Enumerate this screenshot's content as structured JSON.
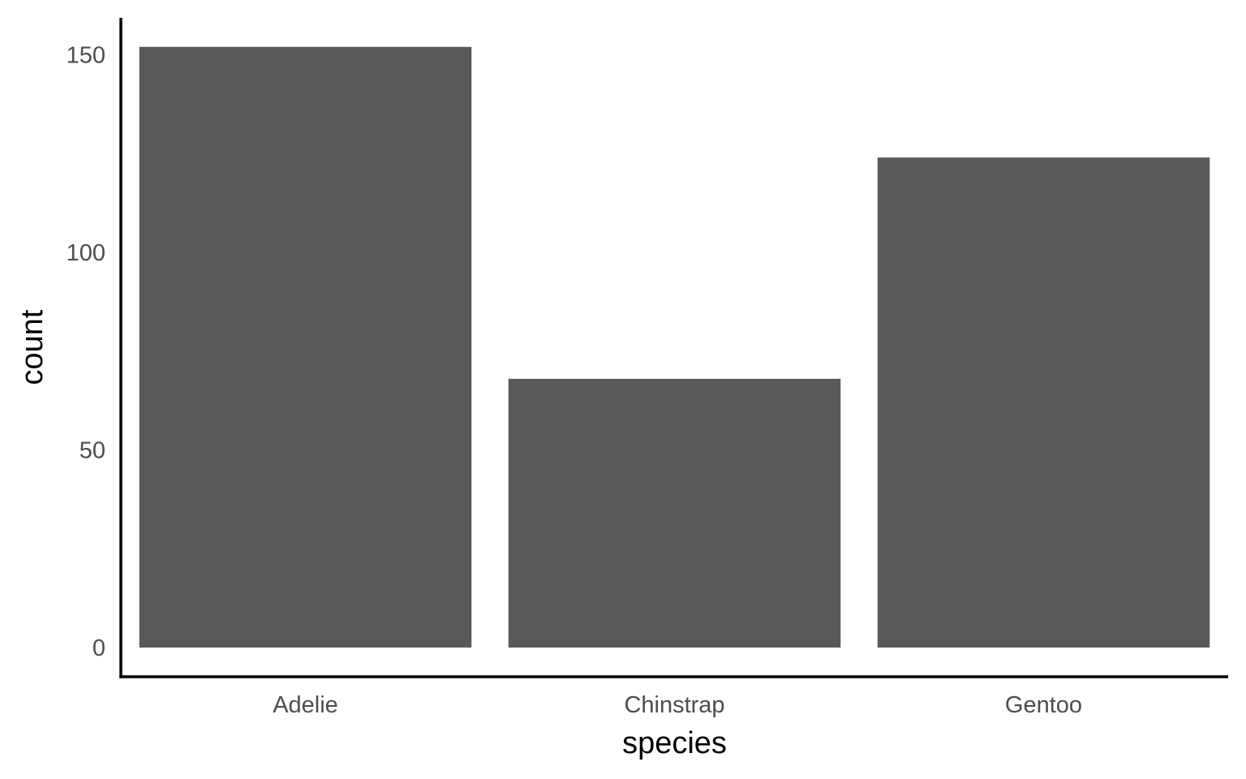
{
  "chart_data": {
    "type": "bar",
    "categories": [
      "Adelie",
      "Chinstrap",
      "Gentoo"
    ],
    "values": [
      152,
      68,
      124
    ],
    "xlabel": "species",
    "ylabel": "count",
    "ylim": [
      0,
      160
    ],
    "yticks": [
      0,
      50,
      100,
      150
    ],
    "bar_color": "#595959",
    "axis_color": "#000000",
    "tick_label_color": "#4d4d4d",
    "grid": false,
    "legend": "none"
  }
}
